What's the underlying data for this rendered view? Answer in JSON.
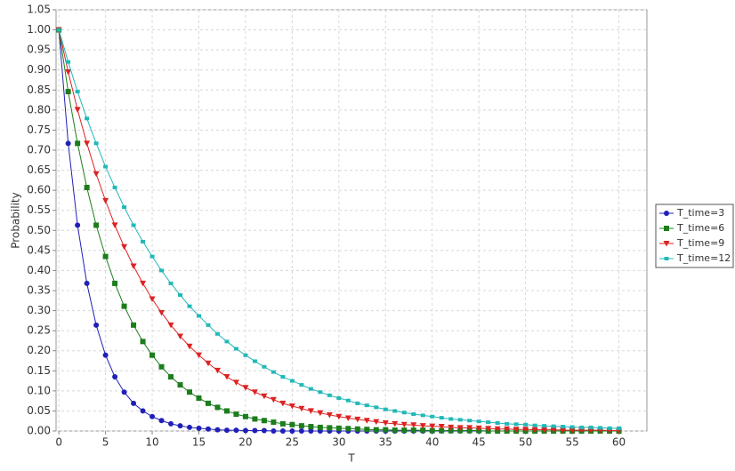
{
  "chart_data": {
    "type": "line",
    "x_label": "T",
    "y_label": "Probability",
    "x": [
      0,
      1,
      2,
      3,
      4,
      5,
      6,
      7,
      8,
      9,
      10,
      11,
      12,
      13,
      14,
      15,
      16,
      17,
      18,
      19,
      20,
      21,
      22,
      23,
      24,
      25,
      26,
      27,
      28,
      29,
      30,
      31,
      32,
      33,
      34,
      35,
      36,
      37,
      38,
      39,
      40,
      41,
      42,
      43,
      44,
      45,
      46,
      47,
      48,
      49,
      50,
      51,
      52,
      53,
      54,
      55,
      56,
      57,
      58,
      59,
      60
    ],
    "series": [
      {
        "name": "T_time=3",
        "color": "#2020b8",
        "marker": "circle",
        "values": [
          1,
          0.717,
          0.513,
          0.368,
          0.264,
          0.189,
          0.135,
          0.097,
          0.069,
          0.05,
          0.036,
          0.026,
          0.018,
          0.013,
          0.009,
          0.007,
          0.005,
          0.003,
          0.002,
          0.002,
          0.001,
          0.001,
          0.001,
          0,
          0,
          0,
          0,
          0,
          0,
          0,
          0,
          0,
          0,
          0,
          0,
          0,
          0,
          0,
          0,
          0,
          0,
          0,
          0,
          0,
          0,
          0,
          0,
          0,
          0,
          0,
          0,
          0,
          0,
          0,
          0,
          0,
          0,
          0,
          0,
          0,
          0
        ]
      },
      {
        "name": "T_time=6",
        "color": "#1c7d1c",
        "marker": "square",
        "values": [
          1,
          0.846,
          0.717,
          0.607,
          0.513,
          0.435,
          0.368,
          0.311,
          0.264,
          0.223,
          0.189,
          0.16,
          0.135,
          0.115,
          0.097,
          0.082,
          0.069,
          0.059,
          0.05,
          0.042,
          0.036,
          0.03,
          0.026,
          0.022,
          0.018,
          0.016,
          0.013,
          0.011,
          0.009,
          0.008,
          0.007,
          0.006,
          0.005,
          0.004,
          0.003,
          0.003,
          0.002,
          0.002,
          0.002,
          0.002,
          0.001,
          0.001,
          0.001,
          0.001,
          0.001,
          0.001,
          0,
          0,
          0,
          0,
          0,
          0,
          0,
          0,
          0,
          0,
          0,
          0,
          0,
          0,
          0
        ]
      },
      {
        "name": "T_time=9",
        "color": "#dd2222",
        "marker": "triangle-down",
        "values": [
          1,
          0.895,
          0.801,
          0.717,
          0.641,
          0.574,
          0.513,
          0.459,
          0.411,
          0.368,
          0.329,
          0.295,
          0.264,
          0.236,
          0.211,
          0.189,
          0.169,
          0.151,
          0.135,
          0.121,
          0.108,
          0.097,
          0.087,
          0.078,
          0.069,
          0.062,
          0.056,
          0.05,
          0.045,
          0.04,
          0.036,
          0.032,
          0.029,
          0.026,
          0.023,
          0.02,
          0.018,
          0.016,
          0.015,
          0.013,
          0.012,
          0.011,
          0.009,
          0.008,
          0.008,
          0.007,
          0.006,
          0.005,
          0.005,
          0.004,
          0.004,
          0.003,
          0.003,
          0.003,
          0.002,
          0.002,
          0.002,
          0.002,
          0.002,
          0.001,
          0.001
        ]
      },
      {
        "name": "T_time=12",
        "color": "#22b8b8",
        "marker": "small-square",
        "values": [
          1,
          0.92,
          0.846,
          0.779,
          0.717,
          0.659,
          0.607,
          0.558,
          0.513,
          0.472,
          0.435,
          0.4,
          0.368,
          0.339,
          0.311,
          0.287,
          0.264,
          0.242,
          0.223,
          0.205,
          0.189,
          0.174,
          0.16,
          0.147,
          0.135,
          0.125,
          0.115,
          0.105,
          0.097,
          0.089,
          0.082,
          0.076,
          0.069,
          0.064,
          0.059,
          0.054,
          0.05,
          0.046,
          0.042,
          0.039,
          0.036,
          0.033,
          0.03,
          0.028,
          0.026,
          0.024,
          0.022,
          0.02,
          0.018,
          0.017,
          0.016,
          0.014,
          0.013,
          0.012,
          0.011,
          0.01,
          0.009,
          0.009,
          0.008,
          0.007,
          0.007
        ]
      }
    ],
    "xlim": [
      -0.3,
      63
    ],
    "ylim": [
      0,
      1.05
    ],
    "xticks": [
      0,
      5,
      10,
      15,
      20,
      25,
      30,
      35,
      40,
      45,
      50,
      55,
      60
    ],
    "yticks": [
      {
        "value": 0,
        "label": "0.00"
      },
      {
        "value": 0.05,
        "label": "0.05"
      },
      {
        "value": 0.1,
        "label": "0.10"
      },
      {
        "value": 0.15,
        "label": "0.15"
      },
      {
        "value": 0.2,
        "label": "0.20"
      },
      {
        "value": 0.25,
        "label": "0.25"
      },
      {
        "value": 0.3,
        "label": "0.30"
      },
      {
        "value": 0.35,
        "label": "0.35"
      },
      {
        "value": 0.4,
        "label": "0.40"
      },
      {
        "value": 0.45,
        "label": "0.45"
      },
      {
        "value": 0.5,
        "label": "0.50"
      },
      {
        "value": 0.55,
        "label": "0.55"
      },
      {
        "value": 0.6,
        "label": "0.60"
      },
      {
        "value": 0.65,
        "label": "0.65"
      },
      {
        "value": 0.7,
        "label": "0.70"
      },
      {
        "value": 0.75,
        "label": "0.75"
      },
      {
        "value": 0.8,
        "label": "0.80"
      },
      {
        "value": 0.85,
        "label": "0.85"
      },
      {
        "value": 0.9,
        "label": "0.90"
      },
      {
        "value": 0.95,
        "label": "0.95"
      },
      {
        "value": 1,
        "label": "1.00"
      },
      {
        "value": 1.05,
        "label": "1.05"
      }
    ],
    "grid": true,
    "legend": "right"
  }
}
